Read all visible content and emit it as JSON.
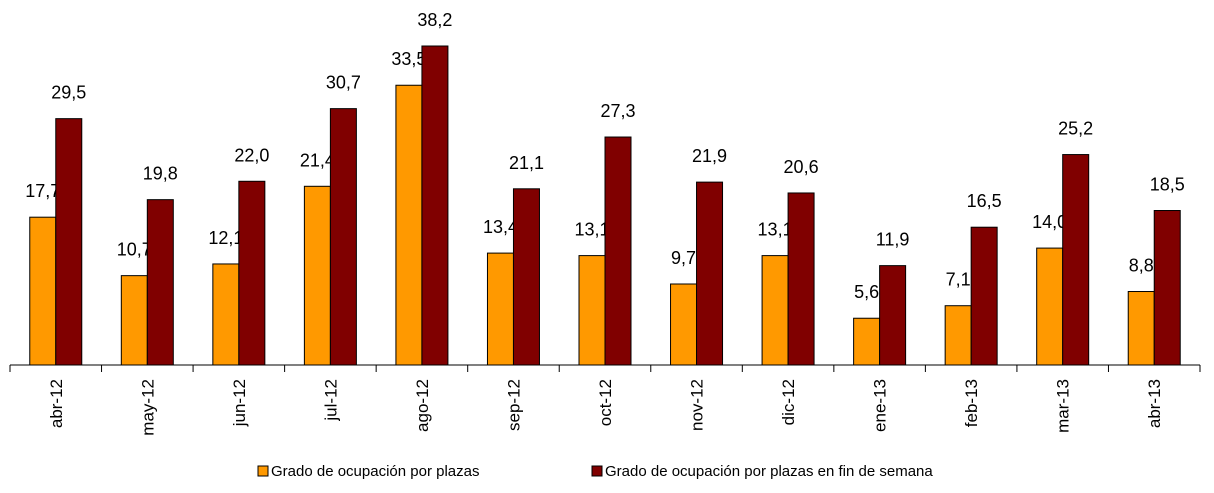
{
  "chart_data": {
    "type": "bar",
    "categories": [
      "abr-12",
      "may-12",
      "jun-12",
      "jul-12",
      "ago-12",
      "sep-12",
      "oct-12",
      "nov-12",
      "dic-12",
      "ene-13",
      "feb-13",
      "mar-13",
      "abr-13"
    ],
    "series": [
      {
        "name": "Grado de ocupación por plazas",
        "color": "#FF9900",
        "values": [
          17.7,
          10.7,
          12.1,
          21.4,
          33.5,
          13.4,
          13.1,
          9.7,
          13.1,
          5.6,
          7.1,
          14.0,
          8.8
        ],
        "labels": [
          "17,7",
          "10,7",
          "12,1",
          "21,4",
          "33,5",
          "13,4",
          "13,1",
          "9,7",
          "13,1",
          "5,6",
          "7,1",
          "14,0",
          "8,8"
        ]
      },
      {
        "name": "Grado de ocupación por plazas en fin de semana",
        "color": "#800000",
        "values": [
          29.5,
          19.8,
          22.0,
          30.7,
          38.2,
          21.1,
          27.3,
          21.9,
          20.6,
          11.9,
          16.5,
          25.2,
          18.5
        ],
        "labels": [
          "29,5",
          "19,8",
          "22,0",
          "30,7",
          "38,2",
          "21,1",
          "27,3",
          "21,9",
          "20,6",
          "11,9",
          "16,5",
          "25,2",
          "18,5"
        ]
      }
    ],
    "ylim": [
      0,
      38.2
    ],
    "grid": false,
    "legend_position": "bottom"
  }
}
